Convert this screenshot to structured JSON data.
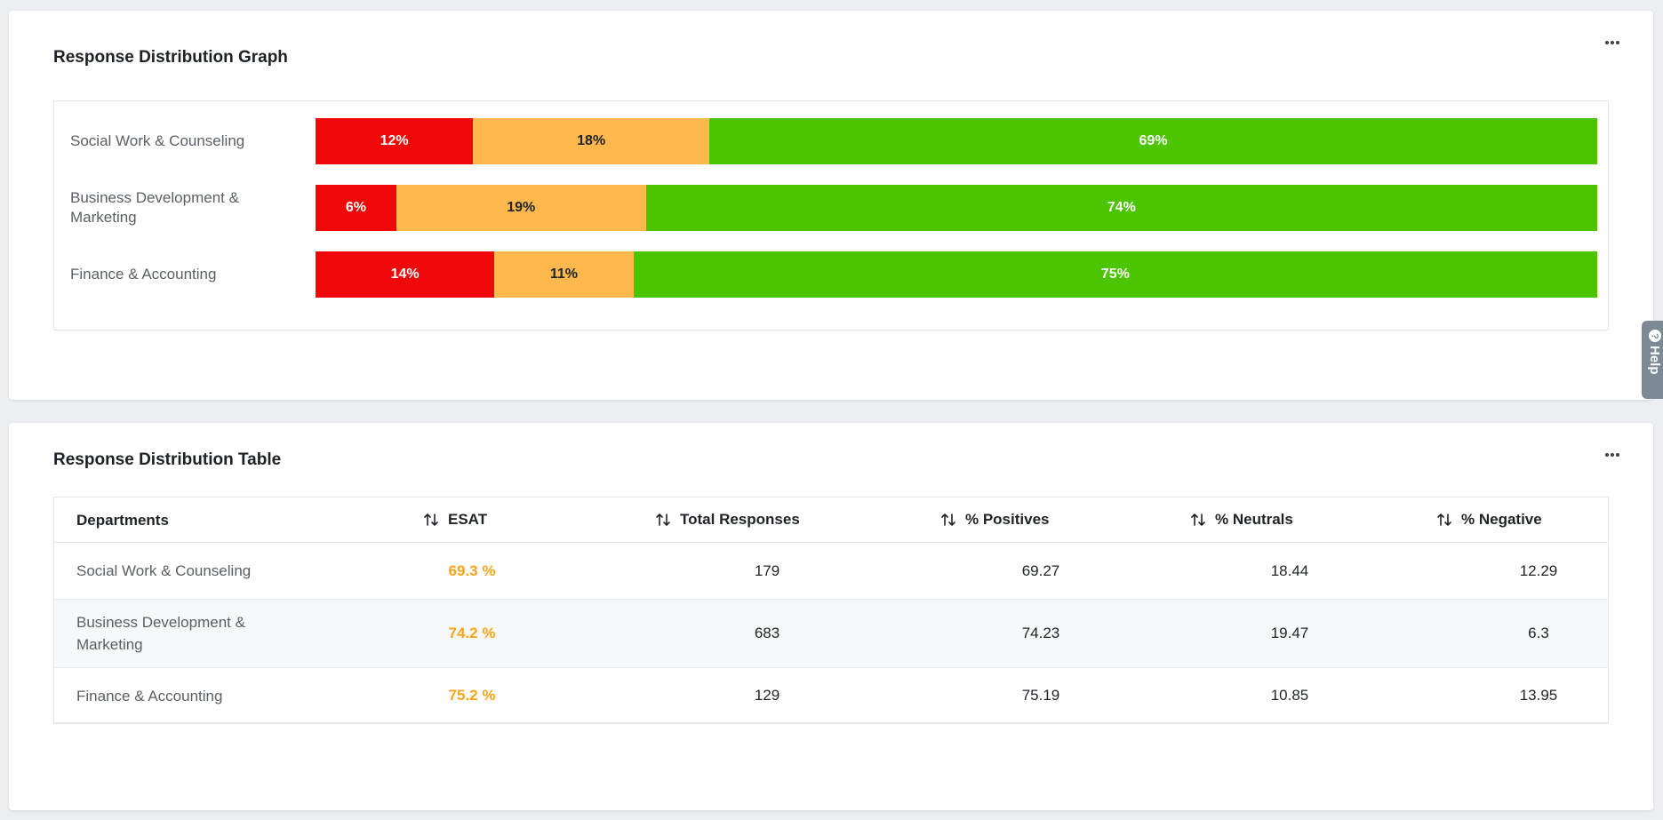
{
  "graph": {
    "title": "Response Distribution Graph",
    "colors": {
      "negative": "#f00808",
      "neutral": "#ffb84d",
      "positive": "#4cc400"
    },
    "rows": [
      {
        "label": "Social Work & Counseling",
        "negative": "12%",
        "neutral": "18%",
        "positive": "69%"
      },
      {
        "label": "Business Development & Marketing",
        "negative": "6%",
        "neutral": "19%",
        "positive": "74%"
      },
      {
        "label": "Finance & Accounting",
        "negative": "14%",
        "neutral": "11%",
        "positive": "75%"
      }
    ]
  },
  "chart_data": {
    "type": "bar",
    "stacked": true,
    "orientation": "horizontal",
    "categories": [
      "Social Work & Counseling",
      "Business Development & Marketing",
      "Finance & Accounting"
    ],
    "series": [
      {
        "values": [
          12.29,
          6.3,
          13.95
        ],
        "color": "#f00808"
      },
      {
        "values": [
          18.44,
          19.47,
          10.85
        ],
        "color": "#ffb84d"
      },
      {
        "values": [
          69.27,
          74.23,
          75.19
        ],
        "color": "#4cc400"
      }
    ],
    "data_labels": [
      [
        "12%",
        "18%",
        "69%"
      ],
      [
        "6%",
        "19%",
        "74%"
      ],
      [
        "14%",
        "11%",
        "75%"
      ]
    ],
    "title": "Response Distribution Graph"
  },
  "table": {
    "title": "Response Distribution Table",
    "headers": [
      "Departments",
      "ESAT",
      "Total Responses",
      "% Positives",
      "% Neutrals",
      "% Negative"
    ],
    "rows": [
      {
        "department": "Social Work & Counseling",
        "esat": "69.3 %",
        "total": "179",
        "positives": "69.27",
        "neutrals": "18.44",
        "negative": "12.29"
      },
      {
        "department": "Business Development & Marketing",
        "esat": "74.2 %",
        "total": "683",
        "positives": "74.23",
        "neutrals": "19.47",
        "negative": "6.3"
      },
      {
        "department": "Finance & Accounting",
        "esat": "75.2 %",
        "total": "129",
        "positives": "75.19",
        "neutrals": "10.85",
        "negative": "13.95"
      }
    ],
    "esat_color": "#ffa31a"
  },
  "help": {
    "label": "Help",
    "icon": "question-circle-icon"
  },
  "menu_icon": "more-horizontal-icon"
}
